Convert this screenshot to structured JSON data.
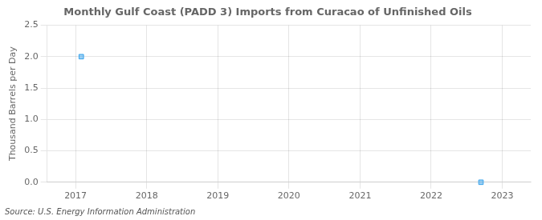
{
  "chart_data": {
    "type": "scatter",
    "title": "Monthly Gulf Coast (PADD 3) Imports from Curacao of Unfinished Oils",
    "ylabel": "Thousand Barrels per Day",
    "annotations": [
      "Source: U.S. Energy Information Administration"
    ],
    "x": [
      2017.08,
      2022.7
    ],
    "values": [
      2.0,
      0.0
    ],
    "marker": "square",
    "xlim": [
      2016.6,
      2023.4
    ],
    "xticks": [
      2017,
      2018,
      2019,
      2020,
      2021,
      2022,
      2023
    ],
    "ylim": [
      0,
      2.5
    ],
    "yticks": [
      {
        "value": 0,
        "label": "0.0"
      },
      0.5,
      {
        "value": 1,
        "label": "1.0"
      },
      1.5,
      {
        "value": 2,
        "label": "2.0"
      },
      2.5
    ],
    "grid": true
  }
}
